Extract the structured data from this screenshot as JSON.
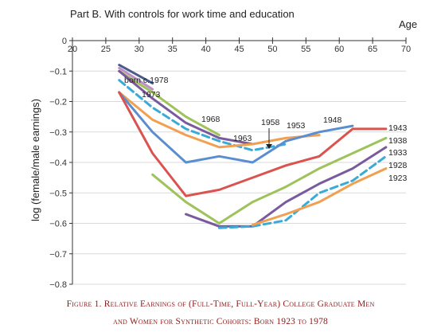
{
  "chart_data": {
    "type": "line",
    "title": "Part B. With controls for work time and education",
    "xlabel": "Age",
    "ylabel": "log (female/male earnings)",
    "xlim": [
      20,
      70
    ],
    "ylim": [
      -0.8,
      0
    ],
    "x_ticks": [
      "20",
      "25",
      "30",
      "35",
      "40",
      "45",
      "50",
      "55",
      "60",
      "65",
      "70"
    ],
    "y_ticks": [
      "0",
      "−0.1",
      "−0.2",
      "−0.3",
      "−0.4",
      "−0.5",
      "−0.6",
      "−0.7",
      "−0.8"
    ],
    "grid": true,
    "series": [
      {
        "name": "born c.1978",
        "color": "#4a5d8a",
        "dash": false,
        "x": [
          27,
          32
        ],
        "y": [
          -0.08,
          -0.14
        ]
      },
      {
        "name": "1973",
        "color": "#c08fc8",
        "dash": false,
        "x": [
          27,
          32
        ],
        "y": [
          -0.09,
          -0.16
        ]
      },
      {
        "name": "1968",
        "color": "#9ec35a",
        "dash": false,
        "x": [
          27,
          32,
          37,
          42
        ],
        "y": [
          -0.1,
          -0.17,
          -0.25,
          -0.31
        ]
      },
      {
        "name": "1963",
        "color": "#7a5a9e",
        "dash": false,
        "x": [
          27,
          32,
          37,
          42,
          47
        ],
        "y": [
          -0.1,
          -0.19,
          -0.27,
          -0.32,
          -0.34
        ]
      },
      {
        "name": "1958",
        "color": "#3aabd6",
        "dash": true,
        "x": [
          27,
          32,
          37,
          42,
          47,
          52
        ],
        "y": [
          -0.13,
          -0.22,
          -0.29,
          -0.33,
          -0.36,
          -0.34
        ]
      },
      {
        "name": "1953",
        "color": "#f0a050",
        "dash": false,
        "x": [
          27,
          32,
          37,
          42,
          47,
          52,
          57
        ],
        "y": [
          -0.17,
          -0.26,
          -0.31,
          -0.35,
          -0.34,
          -0.32,
          -0.31
        ]
      },
      {
        "name": "1948",
        "color": "#5b8ed0",
        "dash": false,
        "x": [
          27,
          32,
          37,
          42,
          47,
          52,
          57,
          62
        ],
        "y": [
          -0.17,
          -0.3,
          -0.4,
          -0.38,
          -0.4,
          -0.33,
          -0.3,
          -0.28
        ]
      },
      {
        "name": "1943",
        "color": "#d9534f",
        "dash": false,
        "x": [
          27,
          32,
          37,
          42,
          47,
          52,
          57,
          62,
          67
        ],
        "y": [
          -0.17,
          -0.37,
          -0.51,
          -0.49,
          -0.45,
          -0.41,
          -0.38,
          -0.29,
          -0.29
        ]
      },
      {
        "name": "1938",
        "color": "#9ec35a",
        "dash": false,
        "x": [
          32,
          37,
          42,
          47,
          52,
          57,
          62,
          67
        ],
        "y": [
          -0.44,
          -0.53,
          -0.6,
          -0.53,
          -0.48,
          -0.42,
          -0.37,
          -0.32
        ]
      },
      {
        "name": "1933",
        "color": "#7a5a9e",
        "dash": false,
        "x": [
          37,
          42,
          47,
          52,
          57,
          62,
          67
        ],
        "y": [
          -0.57,
          -0.61,
          -0.61,
          -0.53,
          -0.47,
          -0.42,
          -0.35
        ]
      },
      {
        "name": "1928",
        "color": "#3aabd6",
        "dash": true,
        "x": [
          42,
          47,
          52,
          57,
          62,
          67
        ],
        "y": [
          -0.615,
          -0.61,
          -0.59,
          -0.5,
          -0.46,
          -0.38
        ]
      },
      {
        "name": "1923",
        "color": "#f0a050",
        "dash": false,
        "x": [
          47,
          52,
          57,
          62,
          67
        ],
        "y": [
          -0.605,
          -0.57,
          -0.53,
          -0.47,
          -0.42
        ]
      }
    ]
  },
  "caption": {
    "line1": "Figure 1. Relative Earnings of (Full-Time, Full-Year) College Graduate Men",
    "line2": "and Women for Synthetic Cohorts: Born 1923 to 1978"
  }
}
